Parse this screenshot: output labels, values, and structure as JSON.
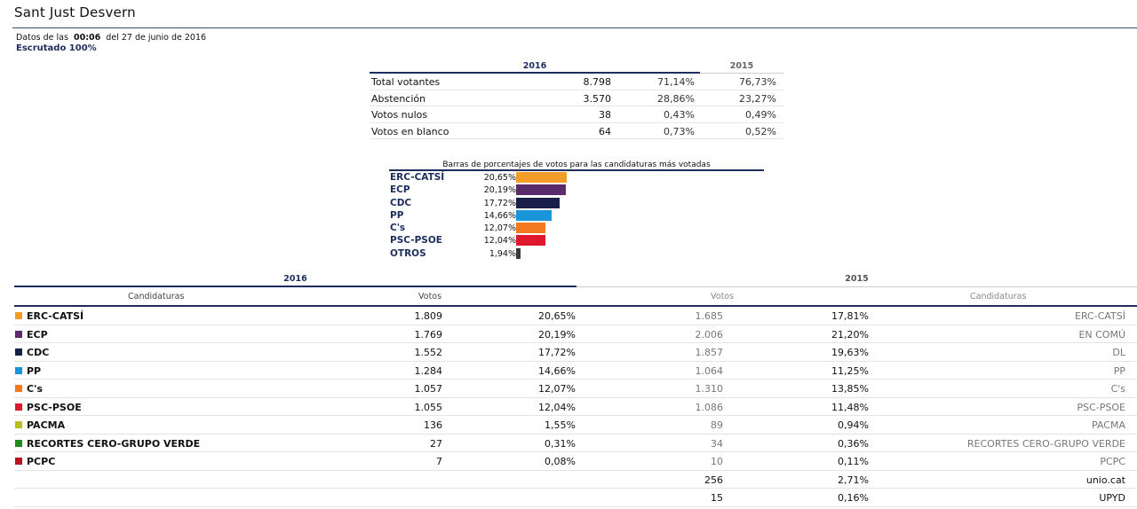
{
  "page": {
    "title": "Sant Just Desvern",
    "data_prefix": "Datos de las",
    "data_time": "00:06",
    "data_date": "del 27 de junio de 2016",
    "scrutiny": "Escrutado 100%"
  },
  "summary": {
    "year_current": "2016",
    "year_previous": "2015",
    "rows": [
      {
        "label": "Total votantes",
        "count": "8.798",
        "pct_2016": "71,14%",
        "pct_2015": "76,73%"
      },
      {
        "label": "Abstención",
        "count": "3.570",
        "pct_2016": "28,86%",
        "pct_2015": "23,27%"
      },
      {
        "label": "Votos nulos",
        "count": "38",
        "pct_2016": "0,43%",
        "pct_2015": "0,49%"
      },
      {
        "label": "Votos en blanco",
        "count": "64",
        "pct_2016": "0,73%",
        "pct_2015": "0,52%"
      }
    ]
  },
  "chart_data": {
    "type": "bar",
    "title": "Barras de porcentajes de votos para las candidaturas más votadas",
    "categories": [
      "ERC-CATSÍ",
      "ECP",
      "CDC",
      "PP",
      "C's",
      "PSC-PSOE",
      "OTROS"
    ],
    "values": [
      20.65,
      20.19,
      17.72,
      14.66,
      12.07,
      12.04,
      1.94
    ],
    "labels": [
      "20,65%",
      "20,19%",
      "17,72%",
      "14,66%",
      "12,07%",
      "12,04%",
      "1,94%"
    ],
    "colors": [
      "#f39c2a",
      "#5b2a6a",
      "#1a1f4a",
      "#1b95d9",
      "#f47a22",
      "#e0182d",
      "#3a3a3a"
    ],
    "orientation": "horizontal"
  },
  "results": {
    "year_current": "2016",
    "year_previous": "2015",
    "header": {
      "candidaturas_2016": "Candidaturas",
      "votos_2016": "Votos",
      "votos_2015": "Votos",
      "candidaturas_2015": "Candidaturas"
    },
    "rows": [
      {
        "party": "ERC-CATSÍ",
        "color": "#f39c2a",
        "votes_2016": "1.809",
        "pct_2016": "20,65%",
        "votes_2015": "1.685",
        "pct_2015": "17,81%",
        "party_2015": "ERC-CATSÍ"
      },
      {
        "party": "ECP",
        "color": "#5b2a6a",
        "votes_2016": "1.769",
        "pct_2016": "20,19%",
        "votes_2015": "2.006",
        "pct_2015": "21,20%",
        "party_2015": "EN COMÚ"
      },
      {
        "party": "CDC",
        "color": "#1a1f4a",
        "votes_2016": "1.552",
        "pct_2016": "17,72%",
        "votes_2015": "1.857",
        "pct_2015": "19,63%",
        "party_2015": "DL"
      },
      {
        "party": "PP",
        "color": "#1b95d9",
        "votes_2016": "1.284",
        "pct_2016": "14,66%",
        "votes_2015": "1.064",
        "pct_2015": "11,25%",
        "party_2015": "PP"
      },
      {
        "party": "C's",
        "color": "#f47a22",
        "votes_2016": "1.057",
        "pct_2016": "12,07%",
        "votes_2015": "1.310",
        "pct_2015": "13,85%",
        "party_2015": "C's"
      },
      {
        "party": "PSC-PSOE",
        "color": "#e0182d",
        "votes_2016": "1.055",
        "pct_2016": "12,04%",
        "votes_2015": "1.086",
        "pct_2015": "11,48%",
        "party_2015": "PSC-PSOE"
      },
      {
        "party": "PACMA",
        "color": "#b5c21f",
        "votes_2016": "136",
        "pct_2016": "1,55%",
        "votes_2015": "89",
        "pct_2015": "0,94%",
        "party_2015": "PACMA"
      },
      {
        "party": "RECORTES CERO-GRUPO VERDE",
        "color": "#1f8a1f",
        "votes_2016": "27",
        "pct_2016": "0,31%",
        "votes_2015": "34",
        "pct_2015": "0,36%",
        "party_2015": "RECORTES CERO-GRUPO VERDE"
      },
      {
        "party": "PCPC",
        "color": "#b3161c",
        "votes_2016": "7",
        "pct_2016": "0,08%",
        "votes_2015": "10",
        "pct_2015": "0,11%",
        "party_2015": "PCPC"
      },
      {
        "party": "",
        "color": "",
        "votes_2016": "",
        "pct_2016": "",
        "votes_2015": "256",
        "pct_2015": "2,71%",
        "party_2015": "unio.cat"
      },
      {
        "party": "",
        "color": "",
        "votes_2016": "",
        "pct_2016": "",
        "votes_2015": "15",
        "pct_2015": "0,16%",
        "party_2015": "UPYD"
      }
    ]
  }
}
